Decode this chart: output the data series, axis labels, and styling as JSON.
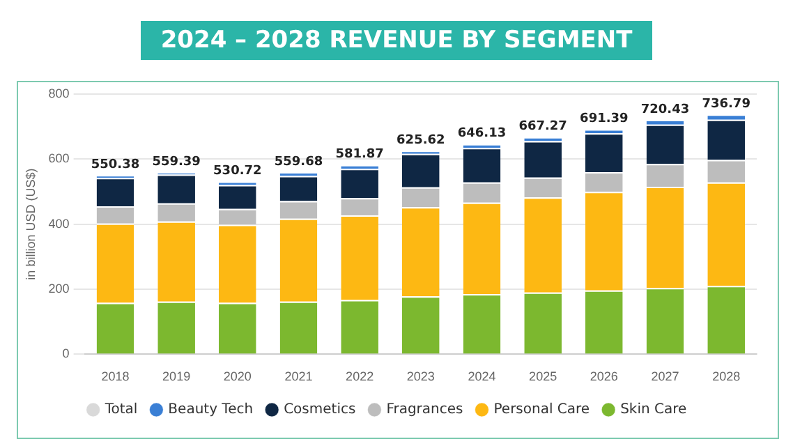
{
  "chart_data": {
    "type": "bar",
    "title": "2024 – 2028 REVENUE BY SEGMENT",
    "ylabel": "in billion USD (US$)",
    "categories": [
      "2018",
      "2019",
      "2020",
      "2021",
      "2022",
      "2023",
      "2024",
      "2025",
      "2026",
      "2027",
      "2028"
    ],
    "stacked": true,
    "grid": "y",
    "legend": "bottom",
    "ylim": [
      0,
      800
    ],
    "yticks": [
      0,
      200,
      400,
      600,
      800
    ],
    "series": [
      {
        "name": "Skin Care",
        "color": "#7cb82f",
        "values": [
          158,
          162,
          158,
          162,
          167,
          178,
          185,
          190,
          196,
          204,
          210
        ]
      },
      {
        "name": "Personal Care",
        "color": "#fdb813",
        "values": [
          244,
          246,
          240,
          255,
          260,
          274,
          281,
          292,
          303,
          311,
          318
        ]
      },
      {
        "name": "Fragrances",
        "color": "#bdbdbd",
        "values": [
          53,
          56,
          49,
          54,
          53,
          61,
          62,
          61,
          61,
          70,
          69
        ]
      },
      {
        "name": "Cosmetics",
        "color": "#0f2744",
        "values": [
          87,
          88,
          73,
          77,
          90,
          103,
          106,
          112,
          119,
          121,
          124
        ]
      },
      {
        "name": "Beauty Tech",
        "color": "#3a7fd5",
        "values": [
          8.38,
          7.39,
          10.72,
          11.68,
          11.87,
          9.62,
          12.13,
          12.27,
          12.39,
          14.43,
          15.79
        ]
      },
      {
        "name": "Total",
        "color": "#d9d9d9",
        "values": [
          null,
          null,
          null,
          null,
          null,
          null,
          null,
          null,
          null,
          null,
          null
        ]
      }
    ],
    "totals": [
      "550.38",
      "559.39",
      "530.72",
      "559.68",
      "581.87",
      "625.62",
      "646.13",
      "667.27",
      "691.39",
      "720.43",
      "736.79"
    ]
  }
}
